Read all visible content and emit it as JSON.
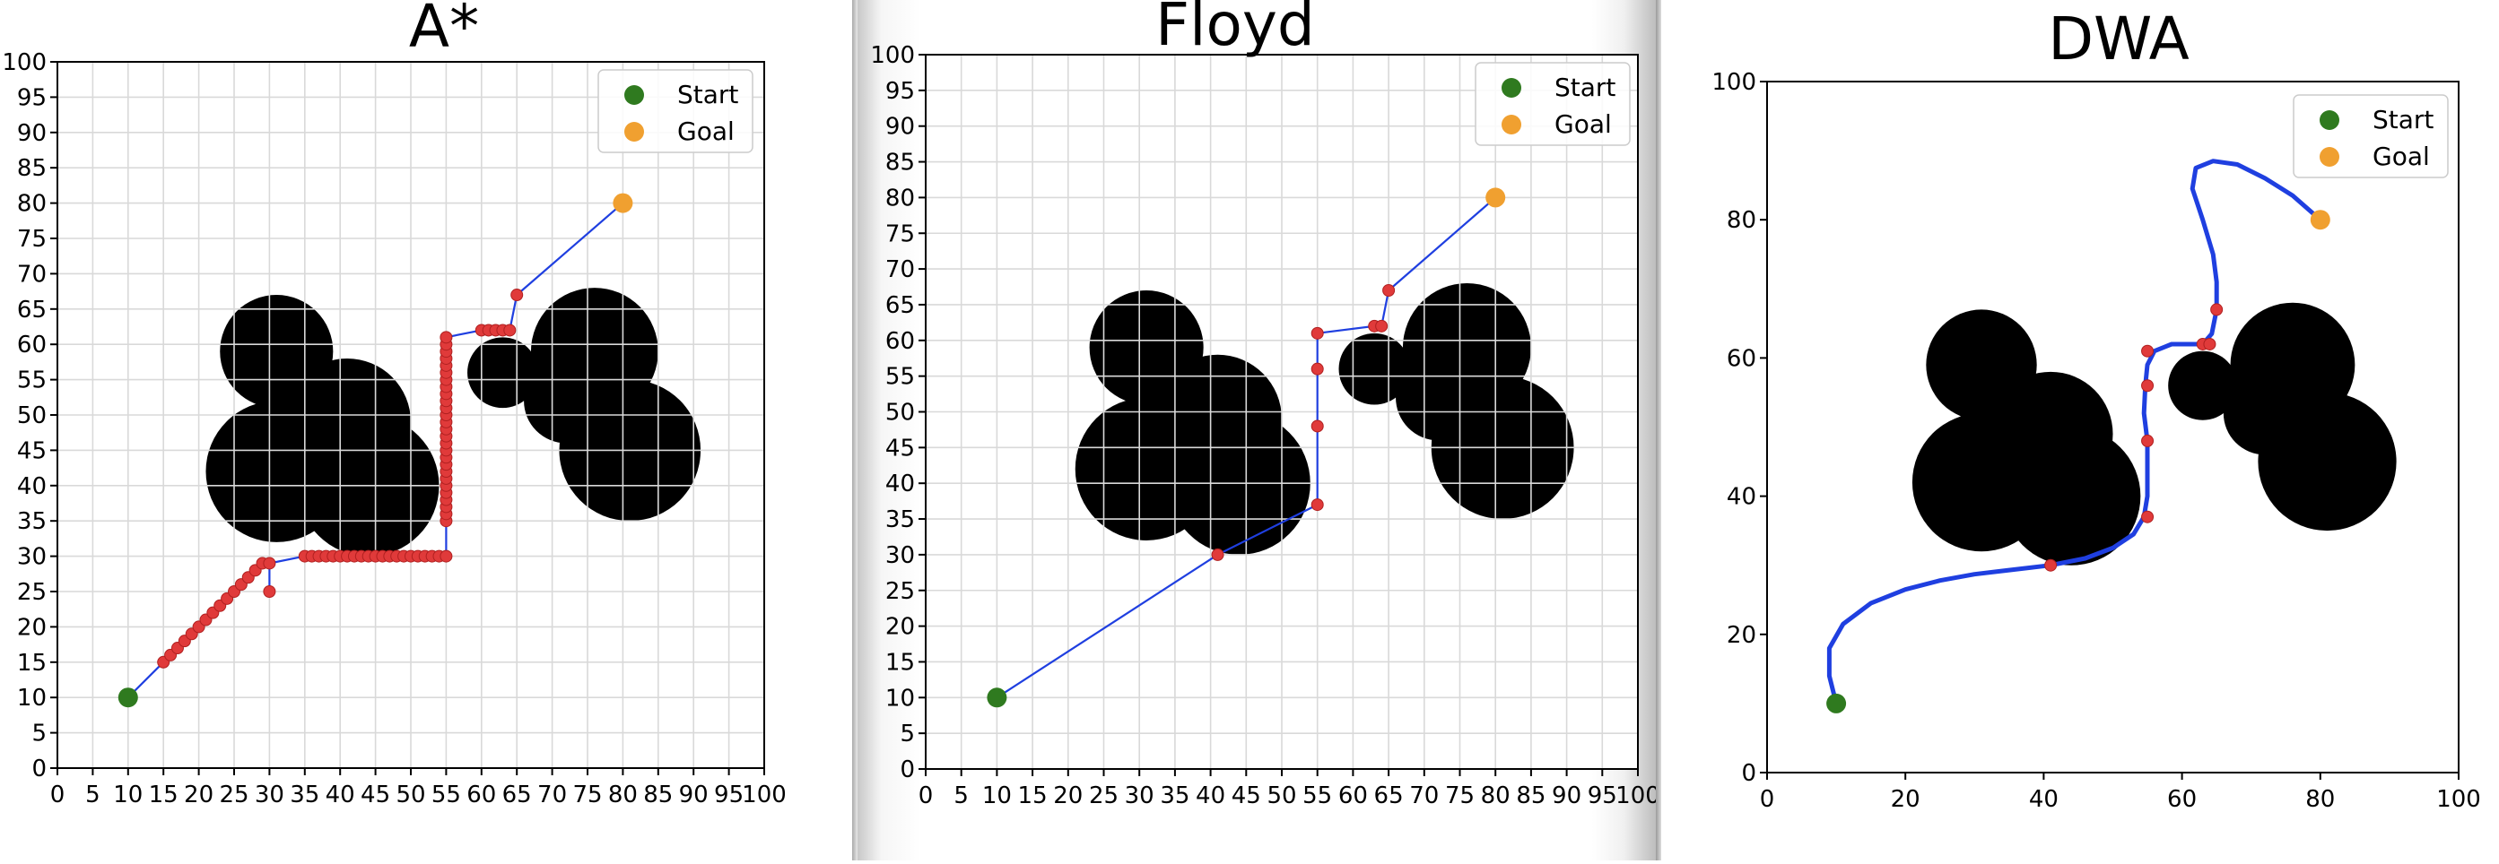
{
  "colors": {
    "obstacle": "#000000",
    "path": "#1f3fe0",
    "waypoint": "#e03a3a",
    "start": "#2f7a1f",
    "goal": "#f0a030",
    "grid": "#d9d9d9"
  },
  "chart_data": [
    {
      "type": "scatter",
      "title": "A*",
      "xlim": [
        0,
        100
      ],
      "ylim": [
        0,
        100
      ],
      "xticks": [
        0,
        5,
        10,
        15,
        20,
        25,
        30,
        35,
        40,
        45,
        50,
        55,
        60,
        65,
        70,
        75,
        80,
        85,
        90,
        95,
        100
      ],
      "yticks": [
        0,
        5,
        10,
        15,
        20,
        25,
        30,
        35,
        40,
        45,
        50,
        55,
        60,
        65,
        70,
        75,
        80,
        85,
        90,
        95,
        100
      ],
      "grid": true,
      "legend": {
        "position": "top-right",
        "entries": [
          "Start",
          "Goal"
        ]
      },
      "obstacles": [
        {
          "cx": 31,
          "cy": 59,
          "r": 8
        },
        {
          "cx": 41,
          "cy": 49,
          "r": 9
        },
        {
          "cx": 31,
          "cy": 42,
          "r": 10
        },
        {
          "cx": 44,
          "cy": 40,
          "r": 10
        },
        {
          "cx": 63,
          "cy": 56,
          "r": 5
        },
        {
          "cx": 76,
          "cy": 59,
          "r": 9
        },
        {
          "cx": 72,
          "cy": 52,
          "r": 6
        },
        {
          "cx": 81,
          "cy": 45,
          "r": 10
        }
      ],
      "start": [
        10,
        10
      ],
      "goal": [
        80,
        80
      ],
      "path": [
        [
          10,
          10
        ],
        [
          15,
          15
        ],
        [
          20,
          20
        ],
        [
          25,
          25
        ],
        [
          28,
          28
        ],
        [
          30,
          29
        ],
        [
          30,
          25
        ],
        [
          30,
          29
        ],
        [
          35,
          30
        ],
        [
          45,
          30
        ],
        [
          55,
          30
        ],
        [
          55,
          35
        ],
        [
          55,
          45
        ],
        [
          55,
          61
        ],
        [
          60,
          62
        ],
        [
          64,
          62
        ],
        [
          65,
          67
        ],
        [
          80,
          80
        ]
      ],
      "waypoints": [
        [
          15,
          15
        ],
        [
          16,
          16
        ],
        [
          17,
          17
        ],
        [
          18,
          18
        ],
        [
          19,
          19
        ],
        [
          20,
          20
        ],
        [
          21,
          21
        ],
        [
          22,
          22
        ],
        [
          23,
          23
        ],
        [
          24,
          24
        ],
        [
          25,
          25
        ],
        [
          26,
          26
        ],
        [
          27,
          27
        ],
        [
          28,
          28
        ],
        [
          29,
          29
        ],
        [
          30,
          29
        ],
        [
          30,
          25
        ],
        [
          35,
          30
        ],
        [
          36,
          30
        ],
        [
          37,
          30
        ],
        [
          38,
          30
        ],
        [
          39,
          30
        ],
        [
          40,
          30
        ],
        [
          41,
          30
        ],
        [
          42,
          30
        ],
        [
          43,
          30
        ],
        [
          44,
          30
        ],
        [
          45,
          30
        ],
        [
          46,
          30
        ],
        [
          47,
          30
        ],
        [
          48,
          30
        ],
        [
          49,
          30
        ],
        [
          50,
          30
        ],
        [
          51,
          30
        ],
        [
          52,
          30
        ],
        [
          53,
          30
        ],
        [
          54,
          30
        ],
        [
          55,
          30
        ],
        [
          55,
          35
        ],
        [
          55,
          36
        ],
        [
          55,
          37
        ],
        [
          55,
          38
        ],
        [
          55,
          39
        ],
        [
          55,
          40
        ],
        [
          55,
          41
        ],
        [
          55,
          42
        ],
        [
          55,
          43
        ],
        [
          55,
          44
        ],
        [
          55,
          45
        ],
        [
          55,
          46
        ],
        [
          55,
          47
        ],
        [
          55,
          48
        ],
        [
          55,
          49
        ],
        [
          55,
          50
        ],
        [
          55,
          51
        ],
        [
          55,
          52
        ],
        [
          55,
          53
        ],
        [
          55,
          54
        ],
        [
          55,
          55
        ],
        [
          55,
          56
        ],
        [
          55,
          57
        ],
        [
          55,
          58
        ],
        [
          55,
          59
        ],
        [
          55,
          60
        ],
        [
          55,
          61
        ],
        [
          60,
          62
        ],
        [
          61,
          62
        ],
        [
          62,
          62
        ],
        [
          63,
          62
        ],
        [
          64,
          62
        ],
        [
          65,
          67
        ]
      ]
    },
    {
      "type": "scatter",
      "title": "Floyd",
      "xlim": [
        0,
        100
      ],
      "ylim": [
        0,
        100
      ],
      "xticks": [
        0,
        5,
        10,
        15,
        20,
        25,
        30,
        35,
        40,
        45,
        50,
        55,
        60,
        65,
        70,
        75,
        80,
        85,
        90,
        95,
        100
      ],
      "yticks": [
        0,
        5,
        10,
        15,
        20,
        25,
        30,
        35,
        40,
        45,
        50,
        55,
        60,
        65,
        70,
        75,
        80,
        85,
        90,
        95,
        100
      ],
      "grid": true,
      "legend": {
        "position": "top-right",
        "entries": [
          "Start",
          "Goal"
        ]
      },
      "obstacles": [
        {
          "cx": 31,
          "cy": 59,
          "r": 8
        },
        {
          "cx": 41,
          "cy": 49,
          "r": 9
        },
        {
          "cx": 31,
          "cy": 42,
          "r": 10
        },
        {
          "cx": 44,
          "cy": 40,
          "r": 10
        },
        {
          "cx": 63,
          "cy": 56,
          "r": 5
        },
        {
          "cx": 76,
          "cy": 59,
          "r": 9
        },
        {
          "cx": 72,
          "cy": 52,
          "r": 6
        },
        {
          "cx": 81,
          "cy": 45,
          "r": 10
        }
      ],
      "start": [
        10,
        10
      ],
      "goal": [
        80,
        80
      ],
      "path": [
        [
          10,
          10
        ],
        [
          41,
          30
        ],
        [
          55,
          37
        ],
        [
          55,
          48
        ],
        [
          55,
          56
        ],
        [
          55,
          61
        ],
        [
          63,
          62
        ],
        [
          64,
          62
        ],
        [
          65,
          67
        ],
        [
          80,
          80
        ]
      ],
      "waypoints": [
        [
          41,
          30
        ],
        [
          55,
          37
        ],
        [
          55,
          48
        ],
        [
          55,
          56
        ],
        [
          55,
          61
        ],
        [
          63,
          62
        ],
        [
          64,
          62
        ],
        [
          65,
          67
        ]
      ]
    },
    {
      "type": "scatter",
      "title": "DWA",
      "xlim": [
        0,
        100
      ],
      "ylim": [
        0,
        100
      ],
      "xticks": [
        0,
        20,
        40,
        60,
        80,
        100
      ],
      "yticks": [
        0,
        20,
        40,
        60,
        80,
        100
      ],
      "grid": false,
      "legend": {
        "position": "top-right",
        "entries": [
          "Start",
          "Goal"
        ]
      },
      "obstacles": [
        {
          "cx": 31,
          "cy": 59,
          "r": 8
        },
        {
          "cx": 41,
          "cy": 49,
          "r": 9
        },
        {
          "cx": 31,
          "cy": 42,
          "r": 10
        },
        {
          "cx": 44,
          "cy": 40,
          "r": 10
        },
        {
          "cx": 63,
          "cy": 56,
          "r": 5
        },
        {
          "cx": 76,
          "cy": 59,
          "r": 9
        },
        {
          "cx": 72,
          "cy": 52,
          "r": 6
        },
        {
          "cx": 81,
          "cy": 45,
          "r": 10
        }
      ],
      "start": [
        10,
        10
      ],
      "goal": [
        80,
        80
      ],
      "path": [
        [
          10,
          10
        ],
        [
          9,
          14
        ],
        [
          9,
          18
        ],
        [
          11,
          21.5
        ],
        [
          15,
          24.5
        ],
        [
          20,
          26.5
        ],
        [
          25,
          27.8
        ],
        [
          30,
          28.7
        ],
        [
          35,
          29.3
        ],
        [
          41,
          30
        ],
        [
          46,
          31
        ],
        [
          50,
          32.5
        ],
        [
          53,
          34.5
        ],
        [
          54.5,
          37
        ],
        [
          55,
          40
        ],
        [
          55,
          44
        ],
        [
          55,
          48
        ],
        [
          54.5,
          52
        ],
        [
          54.7,
          56
        ],
        [
          55,
          59
        ],
        [
          56,
          61
        ],
        [
          58.5,
          62
        ],
        [
          61,
          62
        ],
        [
          63,
          62
        ],
        [
          64.3,
          63.5
        ],
        [
          65,
          67
        ],
        [
          65,
          71
        ],
        [
          64.5,
          75
        ],
        [
          63,
          80
        ],
        [
          61.5,
          84.5
        ],
        [
          62,
          87.5
        ],
        [
          64.5,
          88.5
        ],
        [
          68,
          88
        ],
        [
          72,
          86
        ],
        [
          76,
          83.5
        ],
        [
          80,
          80
        ]
      ],
      "waypoints": [
        [
          41,
          30
        ],
        [
          55,
          37
        ],
        [
          55,
          48
        ],
        [
          55,
          56
        ],
        [
          55,
          61
        ],
        [
          63,
          62
        ],
        [
          64,
          62
        ],
        [
          65,
          67
        ]
      ]
    }
  ]
}
